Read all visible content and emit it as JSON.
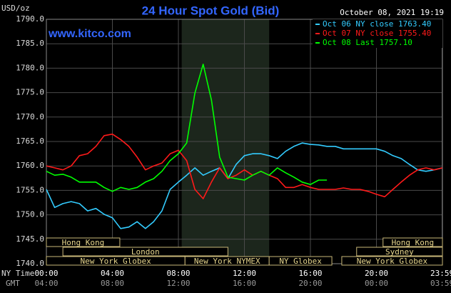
{
  "chart_data": {
    "type": "line",
    "title": "24 Hour Spot Gold (Bid)",
    "subtitle": "www.kitco.com",
    "timestamp": "October 08, 2021 19:19",
    "y_label": "USD/oz",
    "x_label": "NY Time",
    "x2_label": "GMT",
    "ylim": [
      1740,
      1790
    ],
    "yticks": [
      {
        "value": 1740,
        "label": "1740.0"
      },
      {
        "value": 1745,
        "label": "1745.0"
      },
      {
        "value": 1750,
        "label": "1750.0"
      },
      {
        "value": 1755,
        "label": "1755.0"
      },
      {
        "value": 1760,
        "label": "1760.0"
      },
      {
        "value": 1765,
        "label": "1765.0"
      },
      {
        "value": 1770,
        "label": "1770.0"
      },
      {
        "value": 1775,
        "label": "1775.0"
      },
      {
        "value": 1780,
        "label": "1780.0"
      },
      {
        "value": 1785,
        "label": "1785.0"
      },
      {
        "value": 1790,
        "label": "1790.0"
      }
    ],
    "xlim": [
      0,
      24
    ],
    "xticks": [
      {
        "value": 0,
        "label": "00:00"
      },
      {
        "value": 4,
        "label": "04:00"
      },
      {
        "value": 8,
        "label": "08:00"
      },
      {
        "value": 12,
        "label": "12:00"
      },
      {
        "value": 16,
        "label": "16:00"
      },
      {
        "value": 20,
        "label": "20:00"
      },
      {
        "value": 23.98,
        "label": "23:59"
      }
    ],
    "x2ticks": [
      {
        "value": 0,
        "label": "04:00"
      },
      {
        "value": 4,
        "label": "08:00"
      },
      {
        "value": 8,
        "label": "12:00"
      },
      {
        "value": 12,
        "label": "16:00"
      },
      {
        "value": 16,
        "label": "20:00"
      },
      {
        "value": 20,
        "label": "00:00"
      },
      {
        "value": 23.98,
        "label": "03:59"
      }
    ],
    "grid": true,
    "legend": "top-right",
    "shaded_range": [
      8.2,
      13.5
    ],
    "sessions": [
      [
        {
          "label": "Hong Kong",
          "start": 0,
          "end": 4.45
        },
        {
          "label": "Hong Kong",
          "start": 20.4,
          "end": 24
        }
      ],
      [
        {
          "label": "London",
          "start": 1,
          "end": 11
        },
        {
          "label": "Sydney",
          "start": 18.8,
          "end": 24
        }
      ],
      [
        {
          "label": "New York Globex",
          "start": 0,
          "end": 8.4
        },
        {
          "label": "New York NYMEX",
          "start": 8.4,
          "end": 13.5
        },
        {
          "label": "NY Globex",
          "start": 13.5,
          "end": 17.3
        },
        {
          "label": "New York Globex",
          "start": 17.9,
          "end": 24
        }
      ]
    ],
    "x": [
      0,
      0.5,
      1,
      1.5,
      2,
      2.5,
      3,
      3.5,
      4,
      4.5,
      5,
      5.5,
      6,
      6.5,
      7,
      7.5,
      8,
      8.5,
      9,
      9.5,
      10,
      10.5,
      11,
      11.5,
      12,
      12.5,
      13,
      13.5,
      14,
      14.5,
      15,
      15.5,
      16,
      16.5,
      17,
      17.5,
      18,
      18.5,
      19,
      19.5,
      20,
      20.5,
      21,
      21.5,
      22,
      22.5,
      23,
      23.5,
      24
    ],
    "series": [
      {
        "name": "Oct 06 NY close 1763.40",
        "color": "#33ccff",
        "values": [
          1755.2,
          1751.5,
          1752.3,
          1752.7,
          1752.3,
          1750.8,
          1751.3,
          1750.1,
          1749.4,
          1747.2,
          1747.5,
          1748.6,
          1747.2,
          1748.6,
          1750.8,
          1755.2,
          1756.7,
          1758.1,
          1759.6,
          1758.1,
          1758.9,
          1759.6,
          1757.4,
          1760.3,
          1762.1,
          1762.5,
          1762.5,
          1762.1,
          1761.5,
          1763,
          1764,
          1764.7,
          1764.4,
          1764.3,
          1764,
          1764,
          1763.5,
          1763.5,
          1763.5,
          1763.5,
          1763.5,
          1763,
          1762.1,
          1761.5,
          1760.3,
          1759.2,
          1758.9,
          1759.2,
          1759.6
        ]
      },
      {
        "name": "Oct 07 NY close 1755.40",
        "color": "#ff1a1a",
        "values": [
          1760,
          1759.6,
          1759.2,
          1760,
          1762.1,
          1762.5,
          1764,
          1766.2,
          1766.5,
          1765.4,
          1764,
          1761.8,
          1759.2,
          1760,
          1760.6,
          1762.5,
          1763.2,
          1761.1,
          1755.2,
          1753.3,
          1756.7,
          1759.6,
          1757.4,
          1758.1,
          1759.2,
          1758.1,
          1758.9,
          1758.1,
          1757.4,
          1755.6,
          1755.6,
          1756.2,
          1755.6,
          1755.2,
          1755.2,
          1755.2,
          1755.5,
          1755.2,
          1755.2,
          1754.8,
          1754.2,
          1753.7,
          1755.2,
          1756.7,
          1758.1,
          1759.2,
          1759.6,
          1759.2,
          1759.6
        ]
      },
      {
        "name": "Oct 08 Last 1757.10",
        "color": "#00ff00",
        "values": [
          1758.9,
          1758.1,
          1758.3,
          1757.7,
          1756.7,
          1756.7,
          1756.7,
          1755.6,
          1754.8,
          1755.6,
          1755.2,
          1755.6,
          1756.7,
          1757.4,
          1758.9,
          1761.1,
          1762.5,
          1764.7,
          1774.9,
          1780.8,
          1773.5,
          1761.8,
          1757.7,
          1757.4,
          1757.1,
          1758.1,
          1758.9,
          1758.1,
          1759.6,
          1758.6,
          1757.7,
          1756.7,
          1756.2,
          1757.1,
          1757.1,
          null,
          null,
          null,
          null,
          null,
          null,
          null,
          null,
          null,
          null,
          null,
          null,
          null,
          null
        ]
      }
    ]
  }
}
